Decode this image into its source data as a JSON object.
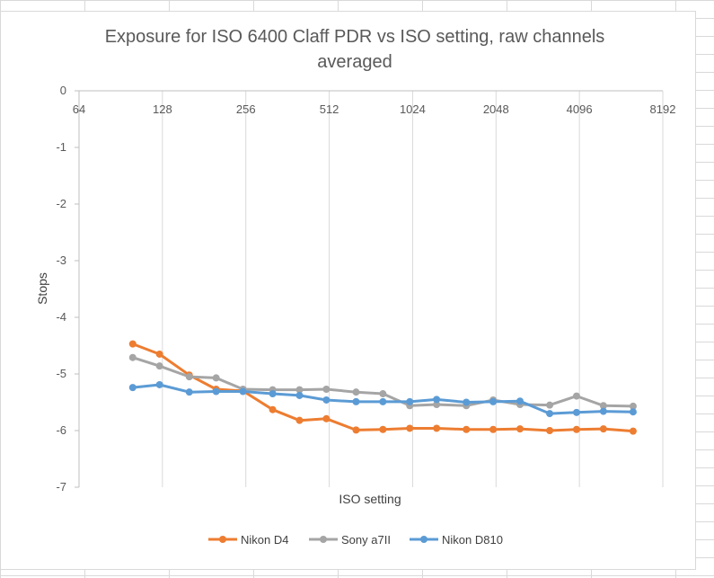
{
  "chart_data": {
    "type": "line",
    "title_line1": "Exposure for ISO 6400 Claff PDR vs ISO setting, raw channels",
    "title_line2": "averaged",
    "xlabel": "ISO setting",
    "ylabel": "Stops",
    "x_scale": "log2",
    "xlim": [
      64,
      8192
    ],
    "ylim": [
      -7,
      0
    ],
    "x_ticks": [
      64,
      128,
      256,
      512,
      1024,
      2048,
      4096,
      8192
    ],
    "y_ticks": [
      0,
      -1,
      -2,
      -3,
      -4,
      -5,
      -6,
      -7
    ],
    "grid": "vertical",
    "legend_position": "bottom",
    "x": [
      100,
      125,
      160,
      200,
      250,
      320,
      400,
      500,
      640,
      800,
      1000,
      1250,
      1600,
      2000,
      2500,
      3200,
      4000,
      5000,
      6400
    ],
    "series": [
      {
        "name": "Nikon D4",
        "color": "#ed7d31",
        "values": [
          -4.47,
          -4.65,
          -5.02,
          -5.27,
          -5.3,
          -5.63,
          -5.82,
          -5.79,
          -5.99,
          -5.98,
          -5.96,
          -5.96,
          -5.98,
          -5.98,
          -5.97,
          -6.0,
          -5.98,
          -5.97,
          -6.01
        ]
      },
      {
        "name": "Sony a7II",
        "color": "#a5a5a5",
        "values": [
          -4.71,
          -4.86,
          -5.05,
          -5.07,
          -5.27,
          -5.28,
          -5.28,
          -5.27,
          -5.32,
          -5.35,
          -5.56,
          -5.54,
          -5.56,
          -5.46,
          -5.54,
          -5.55,
          -5.39,
          -5.56,
          -5.57
        ]
      },
      {
        "name": "Nikon D810",
        "color": "#5b9bd5",
        "values": [
          -5.24,
          -5.19,
          -5.32,
          -5.31,
          -5.31,
          -5.35,
          -5.38,
          -5.46,
          -5.49,
          -5.49,
          -5.49,
          -5.45,
          -5.5,
          -5.49,
          -5.48,
          -5.7,
          -5.68,
          -5.66,
          -5.67
        ]
      }
    ]
  }
}
